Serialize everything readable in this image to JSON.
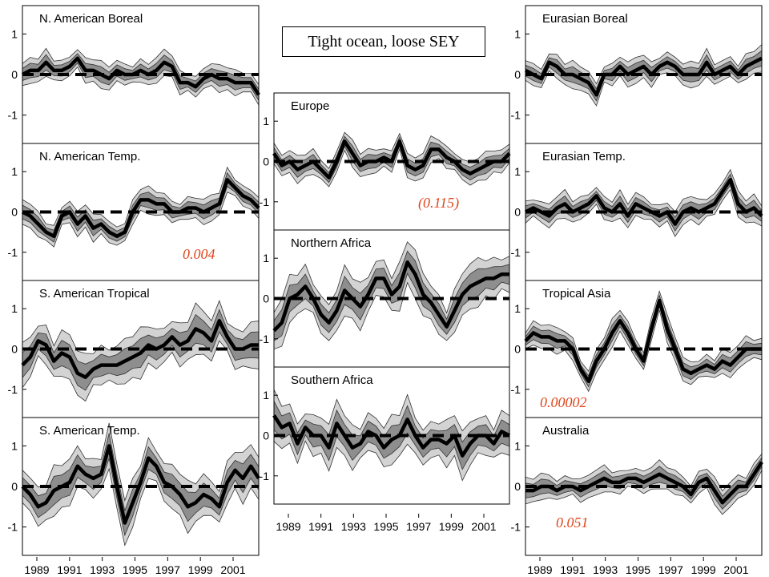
{
  "title": "Tight ocean, loose SEY",
  "x_ticks": [
    "1989",
    "1991",
    "1993",
    "1995",
    "1997",
    "1999",
    "2001"
  ],
  "chart_data": [
    {
      "type": "line",
      "title": "N. American Boreal",
      "ylim": [
        -1.7,
        1.7
      ],
      "yticks": [
        -1,
        0,
        1
      ],
      "series": [
        {
          "values": [
            0.0,
            0.1,
            0.1,
            0.3,
            0.1,
            0.1,
            0.2,
            0.4,
            0.1,
            0.1,
            0.0,
            -0.1,
            0.1,
            0.0,
            0.0,
            0.1,
            0.0,
            0.1,
            0.3,
            0.2,
            -0.2,
            -0.2,
            -0.3,
            -0.1,
            0.0,
            -0.1,
            -0.1,
            -0.2,
            -0.2,
            -0.2,
            -0.5
          ]
        }
      ],
      "ref_line": 0,
      "annotation": ""
    },
    {
      "type": "line",
      "title": "N. American Temp.",
      "ylim": [
        -1.7,
        1.7
      ],
      "yticks": [
        -1,
        0,
        1
      ],
      "series": [
        {
          "values": [
            0.0,
            -0.1,
            -0.3,
            -0.5,
            -0.6,
            -0.1,
            0.0,
            -0.3,
            -0.1,
            -0.4,
            -0.3,
            -0.5,
            -0.6,
            -0.5,
            0.0,
            0.3,
            0.3,
            0.2,
            0.2,
            0.0,
            0.0,
            0.1,
            0.1,
            0.0,
            0.1,
            0.2,
            0.8,
            0.6,
            0.4,
            0.3,
            0.1
          ]
        }
      ],
      "ref_line": 0,
      "annotation": "0.004"
    },
    {
      "type": "line",
      "title": "S. American Tropical",
      "ylim": [
        -1.7,
        1.7
      ],
      "yticks": [
        -1,
        0,
        1
      ],
      "series": [
        {
          "values": [
            -0.4,
            -0.2,
            0.2,
            0.1,
            -0.3,
            -0.1,
            -0.2,
            -0.6,
            -0.7,
            -0.5,
            -0.4,
            -0.4,
            -0.4,
            -0.3,
            -0.2,
            -0.1,
            0.1,
            0.0,
            0.1,
            0.3,
            0.1,
            0.2,
            0.5,
            0.4,
            0.2,
            0.7,
            0.3,
            0.0,
            0.0,
            0.1,
            0.1
          ]
        }
      ],
      "ref_line": 0,
      "annotation": ""
    },
    {
      "type": "line",
      "title": "S. American Temp.",
      "ylim": [
        -1.7,
        1.7
      ],
      "yticks": [
        -1,
        0,
        1
      ],
      "series": [
        {
          "values": [
            0.0,
            -0.2,
            -0.5,
            -0.4,
            -0.1,
            0.0,
            0.1,
            0.5,
            0.3,
            0.2,
            0.3,
            1.0,
            0.0,
            -0.9,
            -0.4,
            0.1,
            0.7,
            0.5,
            0.1,
            0.0,
            -0.2,
            -0.5,
            -0.4,
            -0.2,
            -0.3,
            -0.5,
            0.1,
            0.4,
            0.2,
            0.5,
            0.2
          ]
        }
      ],
      "ref_line": 0,
      "annotation": ""
    },
    {
      "type": "line",
      "title": "Europe",
      "ylim": [
        -1.7,
        1.7
      ],
      "yticks": [
        -1,
        0,
        1
      ],
      "series": [
        {
          "values": [
            0.2,
            -0.1,
            0.0,
            -0.2,
            -0.1,
            0.0,
            -0.2,
            -0.4,
            0.0,
            0.5,
            0.2,
            -0.1,
            0.0,
            0.0,
            0.1,
            0.0,
            0.5,
            -0.1,
            -0.2,
            -0.1,
            0.3,
            0.3,
            0.1,
            0.0,
            -0.2,
            -0.3,
            -0.2,
            -0.1,
            0.0,
            0.0,
            0.2
          ]
        }
      ],
      "ref_line": 0,
      "annotation": "(0.115)"
    },
    {
      "type": "line",
      "title": "Northern Africa",
      "ylim": [
        -1.7,
        1.7
      ],
      "yticks": [
        -1,
        0,
        1
      ],
      "series": [
        {
          "values": [
            -0.8,
            -0.6,
            0.0,
            0.1,
            0.3,
            0.0,
            -0.4,
            -0.6,
            -0.3,
            0.2,
            0.0,
            -0.2,
            0.1,
            0.5,
            0.5,
            0.1,
            0.3,
            0.9,
            0.6,
            0.1,
            -0.1,
            -0.4,
            -0.7,
            -0.3,
            0.1,
            0.3,
            0.4,
            0.5,
            0.5,
            0.6,
            0.6
          ]
        }
      ],
      "ref_line": 0,
      "annotation": ""
    },
    {
      "type": "line",
      "title": "Southern Africa",
      "ylim": [
        -1.7,
        1.7
      ],
      "yticks": [
        -1,
        0,
        1
      ],
      "series": [
        {
          "values": [
            0.5,
            0.2,
            0.3,
            -0.2,
            0.2,
            0.0,
            0.0,
            -0.3,
            0.3,
            0.0,
            -0.3,
            -0.2,
            0.1,
            0.0,
            -0.3,
            -0.1,
            0.0,
            0.4,
            0.0,
            -0.3,
            -0.1,
            -0.1,
            -0.2,
            0.0,
            -0.5,
            -0.2,
            0.0,
            0.0,
            -0.2,
            0.1,
            0.0
          ]
        }
      ],
      "ref_line": 0,
      "annotation": ""
    },
    {
      "type": "line",
      "title": "Eurasian Boreal",
      "ylim": [
        -1.7,
        1.7
      ],
      "yticks": [
        -1,
        0,
        1
      ],
      "series": [
        {
          "values": [
            0.1,
            0.0,
            -0.1,
            0.3,
            0.2,
            0.0,
            0.0,
            -0.1,
            -0.2,
            -0.5,
            0.0,
            0.0,
            0.2,
            0.0,
            0.1,
            0.2,
            0.0,
            0.2,
            0.3,
            0.2,
            0.0,
            0.0,
            0.0,
            0.3,
            0.0,
            0.1,
            0.2,
            0.0,
            0.2,
            0.3,
            0.4
          ]
        }
      ],
      "ref_line": 0,
      "annotation": ""
    },
    {
      "type": "line",
      "title": "Eurasian Temp.",
      "ylim": [
        -1.7,
        1.7
      ],
      "yticks": [
        -1,
        0,
        1
      ],
      "series": [
        {
          "values": [
            0.0,
            0.1,
            0.0,
            -0.1,
            0.1,
            0.2,
            0.0,
            0.1,
            0.2,
            0.4,
            0.1,
            0.0,
            0.2,
            -0.1,
            0.2,
            0.1,
            0.0,
            -0.1,
            0.0,
            -0.3,
            0.0,
            0.1,
            0.0,
            0.1,
            0.2,
            0.5,
            0.8,
            0.2,
            0.0,
            0.1,
            -0.1
          ]
        }
      ],
      "ref_line": 0,
      "annotation": ""
    },
    {
      "type": "line",
      "title": "Tropical Asia",
      "ylim": [
        -1.7,
        1.7
      ],
      "yticks": [
        -1,
        0,
        1
      ],
      "series": [
        {
          "values": [
            0.2,
            0.4,
            0.3,
            0.3,
            0.2,
            0.2,
            0.0,
            -0.5,
            -0.8,
            -0.3,
            0.0,
            0.4,
            0.7,
            0.4,
            0.0,
            -0.3,
            0.5,
            1.2,
            0.5,
            0.0,
            -0.5,
            -0.6,
            -0.5,
            -0.4,
            -0.5,
            -0.3,
            -0.4,
            -0.2,
            0.0,
            0.0,
            0.0
          ]
        }
      ],
      "ref_line": 0,
      "annotation": "0.00002"
    },
    {
      "type": "line",
      "title": "Australia",
      "ylim": [
        -1.7,
        1.7
      ],
      "yticks": [
        -1,
        0,
        1
      ],
      "series": [
        {
          "values": [
            -0.1,
            -0.1,
            0.0,
            0.0,
            -0.1,
            0.0,
            0.0,
            -0.1,
            0.0,
            0.1,
            0.2,
            0.1,
            0.1,
            0.2,
            0.2,
            0.1,
            0.2,
            0.3,
            0.2,
            0.1,
            0.0,
            -0.2,
            0.1,
            0.2,
            -0.1,
            -0.4,
            -0.2,
            0.0,
            0.0,
            0.3,
            0.6
          ]
        }
      ],
      "ref_line": 0,
      "annotation": "0.051"
    }
  ]
}
